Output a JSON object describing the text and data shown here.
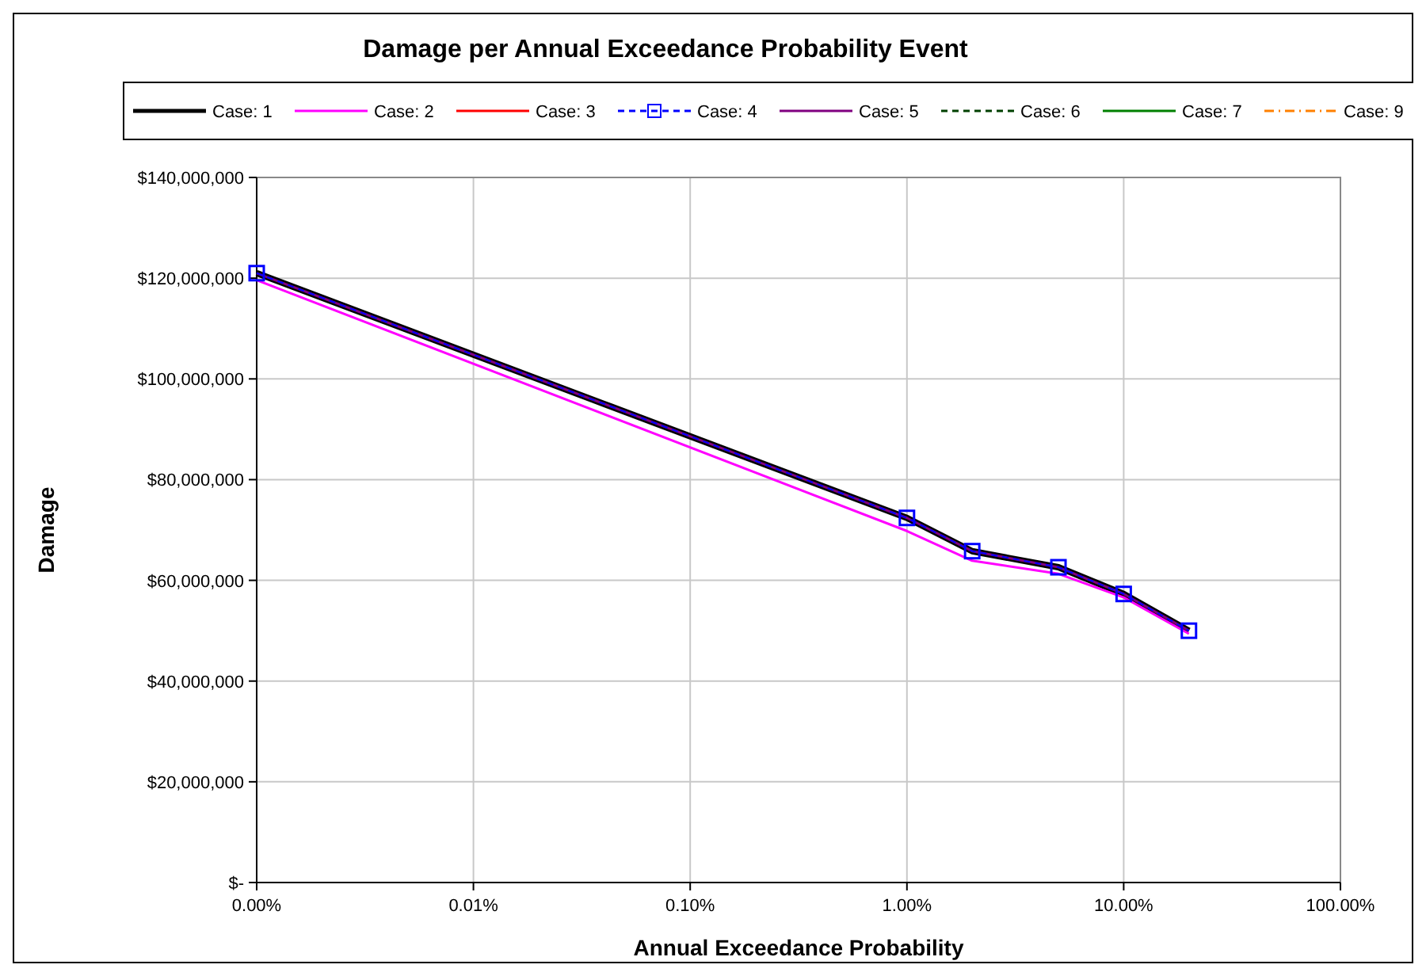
{
  "chart_data": {
    "type": "line",
    "title": "Damage per Annual Exceedance Probability Event",
    "xlabel": "Annual Exceedance Probability",
    "ylabel": "Damage",
    "log": "x",
    "grid": true,
    "legend": "top",
    "x": [
      0.001,
      1,
      2,
      5,
      10,
      20
    ],
    "xlim": [
      0.001,
      100
    ],
    "xticks": [
      {
        "value": 0.001,
        "label": "0.00%"
      },
      {
        "value": 0.01,
        "label": "0.01%"
      },
      {
        "value": 0.1,
        "label": "0.10%"
      },
      {
        "value": 1,
        "label": "1.00%"
      },
      {
        "value": 10,
        "label": "10.00%"
      },
      {
        "value": 100,
        "label": "100.00%"
      }
    ],
    "ylim": [
      0,
      140000000
    ],
    "yticks": [
      {
        "value": 0,
        "label": "$-"
      },
      {
        "value": 20000000,
        "label": "$20,000,000"
      },
      {
        "value": 40000000,
        "label": "$40,000,000"
      },
      {
        "value": 60000000,
        "label": "$60,000,000"
      },
      {
        "value": 80000000,
        "label": "$80,000,000"
      },
      {
        "value": 100000000,
        "label": "$100,000,000"
      },
      {
        "value": 120000000,
        "label": "$120,000,000"
      },
      {
        "value": 140000000,
        "label": "$140,000,000"
      }
    ],
    "series": [
      {
        "name": "Case: 1",
        "color": "#000000",
        "values": [
          121000000,
          72400000,
          65800000,
          62600000,
          57300000,
          50000000
        ]
      },
      {
        "name": "Case: 2",
        "color": "#ff00ff",
        "values": [
          119600000,
          69800000,
          63900000,
          61300000,
          56600000,
          49400000
        ]
      },
      {
        "name": "Case: 3",
        "color": "#ff0000",
        "values": [
          null,
          null,
          null,
          null,
          null,
          null
        ]
      },
      {
        "name": "Case: 4",
        "color": "#0000ff",
        "line_style": "dashed",
        "marker": "square",
        "values": [
          121000000,
          72400000,
          65800000,
          62600000,
          57300000,
          50000000
        ]
      },
      {
        "name": "Case: 5",
        "color": "#800080",
        "values": [
          121000000,
          72400000,
          65800000,
          62600000,
          57300000,
          50000000
        ]
      },
      {
        "name": "Case: 6",
        "color": "#004000",
        "line_style": "dashed",
        "values": [
          null,
          null,
          null,
          null,
          null,
          null
        ]
      },
      {
        "name": "Case: 7",
        "color": "#008000",
        "values": [
          null,
          null,
          null,
          null,
          null,
          null
        ]
      },
      {
        "name": "Case: 9",
        "color": "#ff8000",
        "line_style": "dotted",
        "values": [
          null,
          null,
          null,
          null,
          null,
          null
        ]
      }
    ]
  }
}
